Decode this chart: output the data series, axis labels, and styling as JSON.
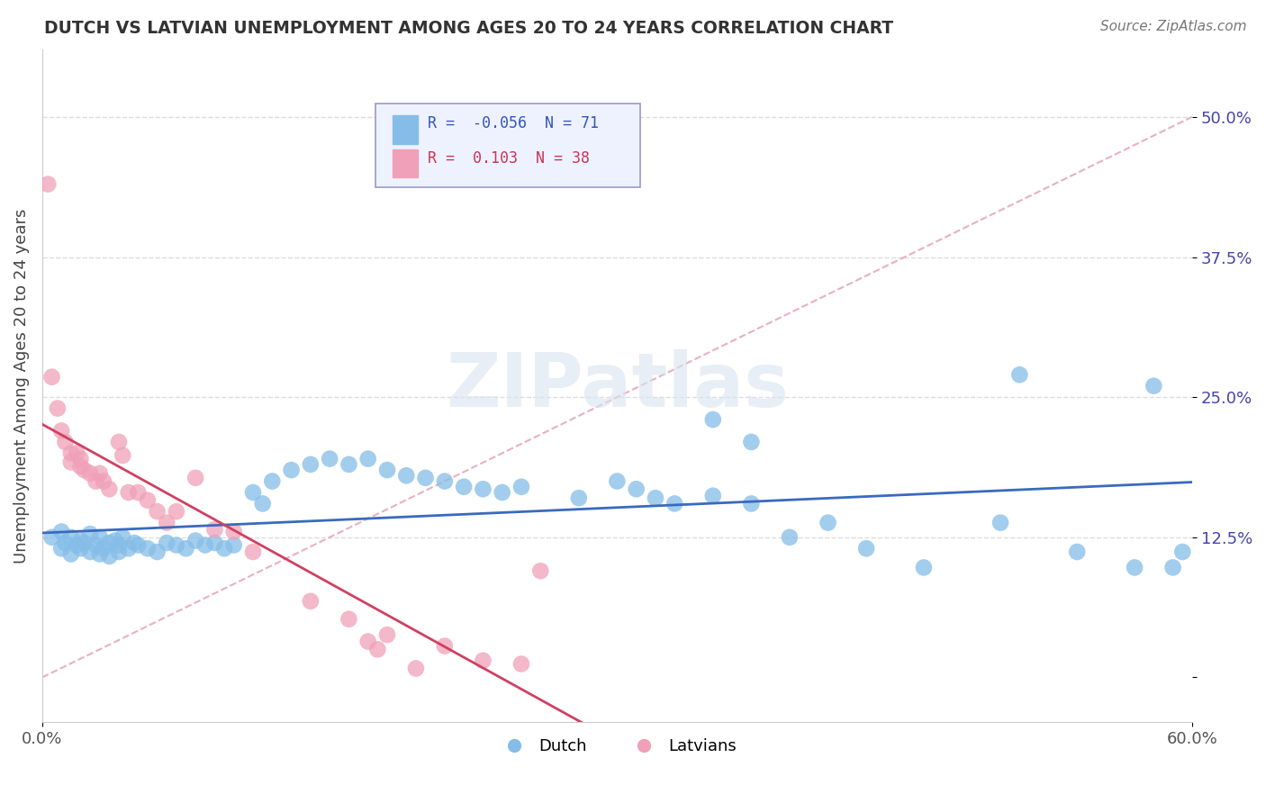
{
  "title": "DUTCH VS LATVIAN UNEMPLOYMENT AMONG AGES 20 TO 24 YEARS CORRELATION CHART",
  "source": "Source: ZipAtlas.com",
  "ylabel": "Unemployment Among Ages 20 to 24 years",
  "xlim": [
    0.0,
    0.6
  ],
  "ylim": [
    -0.04,
    0.56
  ],
  "dutch_color": "#85bde8",
  "latvian_color": "#f0a0b8",
  "dutch_line_color": "#3a6abf",
  "latvian_line_color": "#d04060",
  "ref_line_color": "#d0a0b0",
  "dutch_R": -0.056,
  "dutch_N": 71,
  "latvian_R": 0.103,
  "latvian_N": 38,
  "dutch_scatter_x": [
    0.005,
    0.01,
    0.01,
    0.012,
    0.015,
    0.015,
    0.018,
    0.02,
    0.02,
    0.022,
    0.025,
    0.025,
    0.028,
    0.03,
    0.03,
    0.032,
    0.035,
    0.035,
    0.038,
    0.04,
    0.04,
    0.042,
    0.045,
    0.048,
    0.05,
    0.055,
    0.06,
    0.065,
    0.07,
    0.075,
    0.08,
    0.085,
    0.09,
    0.095,
    0.1,
    0.11,
    0.115,
    0.12,
    0.13,
    0.14,
    0.15,
    0.16,
    0.17,
    0.18,
    0.19,
    0.2,
    0.21,
    0.22,
    0.23,
    0.24,
    0.25,
    0.28,
    0.3,
    0.31,
    0.32,
    0.33,
    0.35,
    0.37,
    0.39,
    0.41,
    0.43,
    0.35,
    0.37,
    0.46,
    0.5,
    0.51,
    0.54,
    0.57,
    0.58,
    0.59,
    0.595
  ],
  "dutch_scatter_y": [
    0.125,
    0.13,
    0.115,
    0.12,
    0.11,
    0.125,
    0.118,
    0.122,
    0.115,
    0.12,
    0.128,
    0.112,
    0.118,
    0.125,
    0.11,
    0.115,
    0.12,
    0.108,
    0.122,
    0.118,
    0.112,
    0.125,
    0.115,
    0.12,
    0.118,
    0.115,
    0.112,
    0.12,
    0.118,
    0.115,
    0.122,
    0.118,
    0.12,
    0.115,
    0.118,
    0.165,
    0.155,
    0.175,
    0.185,
    0.19,
    0.195,
    0.19,
    0.195,
    0.185,
    0.18,
    0.178,
    0.175,
    0.17,
    0.168,
    0.165,
    0.17,
    0.16,
    0.175,
    0.168,
    0.16,
    0.155,
    0.162,
    0.155,
    0.125,
    0.138,
    0.115,
    0.23,
    0.21,
    0.098,
    0.138,
    0.27,
    0.112,
    0.098,
    0.26,
    0.098,
    0.112
  ],
  "latvian_scatter_x": [
    0.003,
    0.005,
    0.008,
    0.01,
    0.012,
    0.015,
    0.015,
    0.018,
    0.02,
    0.02,
    0.022,
    0.025,
    0.028,
    0.03,
    0.032,
    0.035,
    0.04,
    0.042,
    0.045,
    0.05,
    0.055,
    0.06,
    0.065,
    0.07,
    0.08,
    0.09,
    0.1,
    0.11,
    0.14,
    0.16,
    0.17,
    0.175,
    0.18,
    0.195,
    0.21,
    0.23,
    0.25,
    0.26
  ],
  "latvian_scatter_y": [
    0.44,
    0.268,
    0.24,
    0.22,
    0.21,
    0.2,
    0.192,
    0.2,
    0.195,
    0.188,
    0.185,
    0.182,
    0.175,
    0.182,
    0.175,
    0.168,
    0.21,
    0.198,
    0.165,
    0.165,
    0.158,
    0.148,
    0.138,
    0.148,
    0.178,
    0.132,
    0.13,
    0.112,
    0.068,
    0.052,
    0.032,
    0.025,
    0.038,
    0.008,
    0.028,
    0.015,
    0.012,
    0.095
  ],
  "background_color": "#ffffff",
  "grid_color": "#dddddd",
  "watermark": "ZIPatlas",
  "legend_box_facecolor": "#eef2ff",
  "legend_box_edgecolor": "#9999cc"
}
